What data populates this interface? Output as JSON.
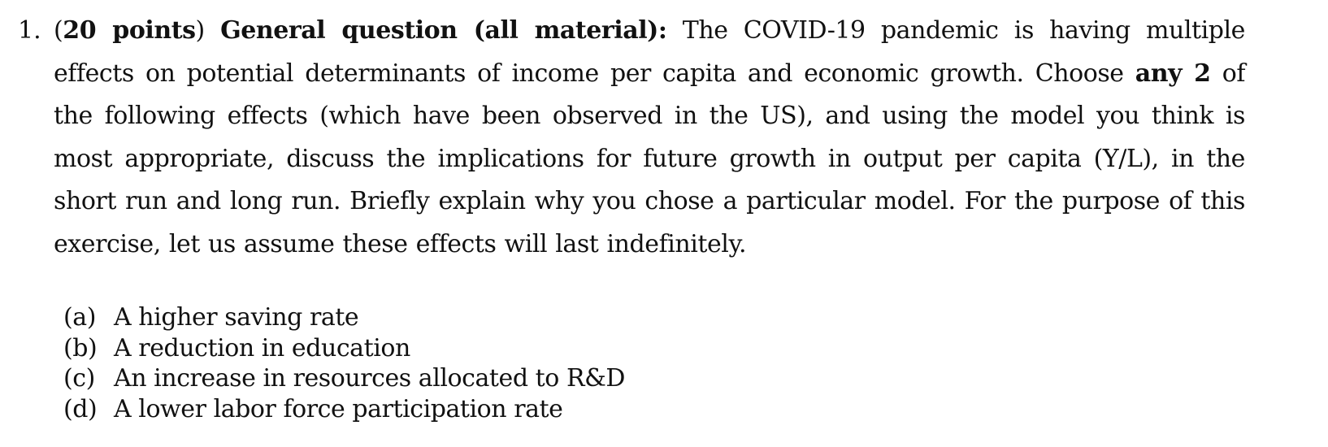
{
  "question": {
    "number": "1.",
    "points_open": "(",
    "points": "20 points",
    "points_close": ") ",
    "heading": "General question (all material):",
    "text_part1": " The COVID-19 pandemic is having multiple effects on potential determinants of income per capita and economic growth. Choose ",
    "emphasis": "any 2",
    "text_part2": " of the following effects (which have been observed in the US), and using the model you think is most appropriate, discuss the implications for future growth in output per capita (Y/L), in the short run and long run. Briefly explain why you chose a particular model. For the purpose of this exercise, let us assume these effects will last indefinitely.",
    "options": [
      {
        "label": "(a)",
        "text": "A higher saving rate"
      },
      {
        "label": "(b)",
        "text": "A reduction in education"
      },
      {
        "label": "(c)",
        "text": "An increase in resources allocated to R&D"
      },
      {
        "label": "(d)",
        "text": "A lower labor force participation rate"
      }
    ]
  }
}
